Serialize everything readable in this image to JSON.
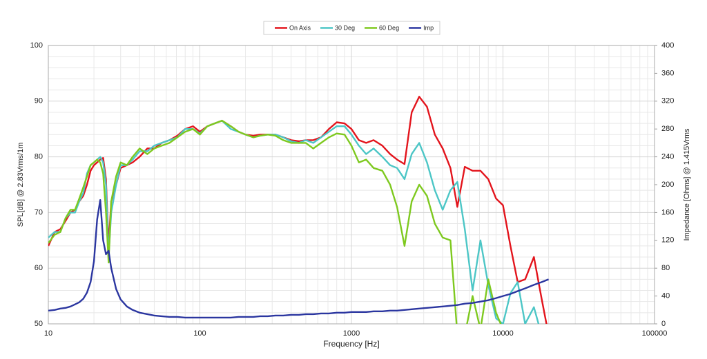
{
  "chart_data": {
    "type": "line",
    "xlabel": "Frequency [Hz]",
    "ylabel": "SPL[dB] @ 2.83Vrms/1m",
    "y2label": "Impedance [Ohms] @ 1.415Vrms",
    "xscale": "log",
    "grid": true,
    "minor_grid": true,
    "legend": "top",
    "xlim": [
      10,
      100000
    ],
    "xticks": [
      10,
      100,
      1000,
      10000,
      100000
    ],
    "ylim": [
      50,
      100
    ],
    "yticks": [
      50,
      60,
      70,
      80,
      90,
      100
    ],
    "y2lim": [
      0,
      400
    ],
    "y2ticks": [
      0,
      40,
      80,
      120,
      160,
      200,
      240,
      280,
      320,
      360,
      400
    ],
    "x": [
      10,
      11,
      12,
      13,
      14,
      15,
      16,
      17,
      18,
      19,
      20,
      21,
      22,
      23,
      24,
      25,
      26,
      28,
      30,
      33,
      36,
      40,
      45,
      50,
      56,
      63,
      71,
      80,
      90,
      100,
      112,
      125,
      140,
      160,
      180,
      200,
      225,
      250,
      280,
      315,
      355,
      400,
      450,
      500,
      560,
      630,
      710,
      800,
      900,
      1000,
      1120,
      1250,
      1400,
      1600,
      1800,
      2000,
      2240,
      2500,
      2800,
      3150,
      3550,
      4000,
      4500,
      5000,
      5600,
      6300,
      7100,
      8000,
      9000,
      10000,
      11200,
      12500,
      14000,
      16000,
      18000,
      20000
    ],
    "series": [
      {
        "name": "On Axis",
        "color": "#e3141c",
        "values": [
          64,
          66.5,
          67,
          68.5,
          70,
          70.5,
          72,
          73,
          75,
          77.5,
          78.5,
          79,
          79.5,
          79.8,
          76,
          64,
          72,
          75,
          78,
          78.5,
          79,
          80,
          81.5,
          81.5,
          82.5,
          83,
          83.8,
          85,
          85.5,
          84.5,
          85.5,
          86,
          86.5,
          85.5,
          84.5,
          84,
          83.8,
          84,
          84,
          84,
          83.5,
          83,
          82.8,
          83,
          83,
          83.5,
          85,
          86.2,
          86,
          85,
          83,
          82.5,
          83,
          82,
          80.5,
          79.5,
          78.7,
          88,
          90.8,
          89,
          84,
          81.5,
          78,
          71,
          78.2,
          77.5,
          77.5,
          76,
          72.5,
          71.3,
          64,
          57.5,
          58,
          62,
          54.5,
          48
        ]
      },
      {
        "name": "30 Deg",
        "color": "#4cc6c6",
        "values": [
          65.5,
          66.5,
          66.5,
          69,
          70,
          70,
          72,
          73.5,
          77,
          78.5,
          79,
          79.5,
          80,
          79,
          75,
          62,
          70,
          75,
          78.5,
          78.5,
          79.5,
          81,
          81,
          82,
          82.5,
          83,
          83.5,
          85,
          85,
          84.2,
          85.5,
          86,
          86.5,
          85,
          84.5,
          84,
          83.5,
          83.8,
          84,
          84,
          83.5,
          82.8,
          82.5,
          83,
          82.5,
          83.5,
          84.5,
          85.5,
          85.5,
          84,
          82,
          80.5,
          81.5,
          80,
          78.5,
          78,
          76,
          80.5,
          82.5,
          79,
          74,
          70.5,
          74,
          75.5,
          67,
          56,
          65,
          57,
          51,
          50,
          55.5,
          57.5,
          50,
          53,
          48,
          null
        ]
      },
      {
        "name": "60 Deg",
        "color": "#7ec91f",
        "values": [
          64.5,
          66,
          66.5,
          69,
          70.5,
          70.5,
          72.5,
          74.5,
          76.5,
          78.5,
          79,
          79.5,
          79,
          77,
          70,
          61,
          72,
          76.5,
          79,
          78.5,
          80,
          81.5,
          80.5,
          81.5,
          82,
          82.5,
          83.5,
          84.5,
          85,
          84,
          85.5,
          86,
          86.5,
          85.5,
          84.5,
          84,
          83.5,
          83.8,
          84,
          83.8,
          83,
          82.5,
          82.5,
          82.5,
          81.5,
          82.5,
          83.5,
          84.2,
          84,
          82,
          79,
          79.5,
          78,
          77.5,
          75,
          71,
          64,
          72,
          75,
          73,
          68,
          65.5,
          65,
          48,
          48,
          55,
          49,
          58,
          52,
          49,
          null,
          null,
          null,
          null,
          null,
          null
        ]
      },
      {
        "name": "Imp",
        "color": "#2b36a0",
        "axis": "y2",
        "values": [
          19,
          20,
          22,
          23,
          25,
          28,
          31,
          36,
          45,
          60,
          90,
          150,
          178,
          120,
          100,
          105,
          80,
          50,
          35,
          25,
          20,
          16,
          14,
          12,
          11,
          10,
          10,
          9,
          9,
          9,
          9,
          9,
          9,
          9,
          10,
          10,
          10,
          11,
          11,
          12,
          12,
          13,
          13,
          14,
          14,
          15,
          15,
          16,
          16,
          17,
          17,
          17,
          18,
          18,
          19,
          19,
          20,
          21,
          22,
          23,
          24,
          25,
          26,
          27,
          29,
          30,
          32,
          34,
          37,
          40,
          43,
          47,
          51,
          56,
          60,
          64
        ]
      }
    ]
  }
}
